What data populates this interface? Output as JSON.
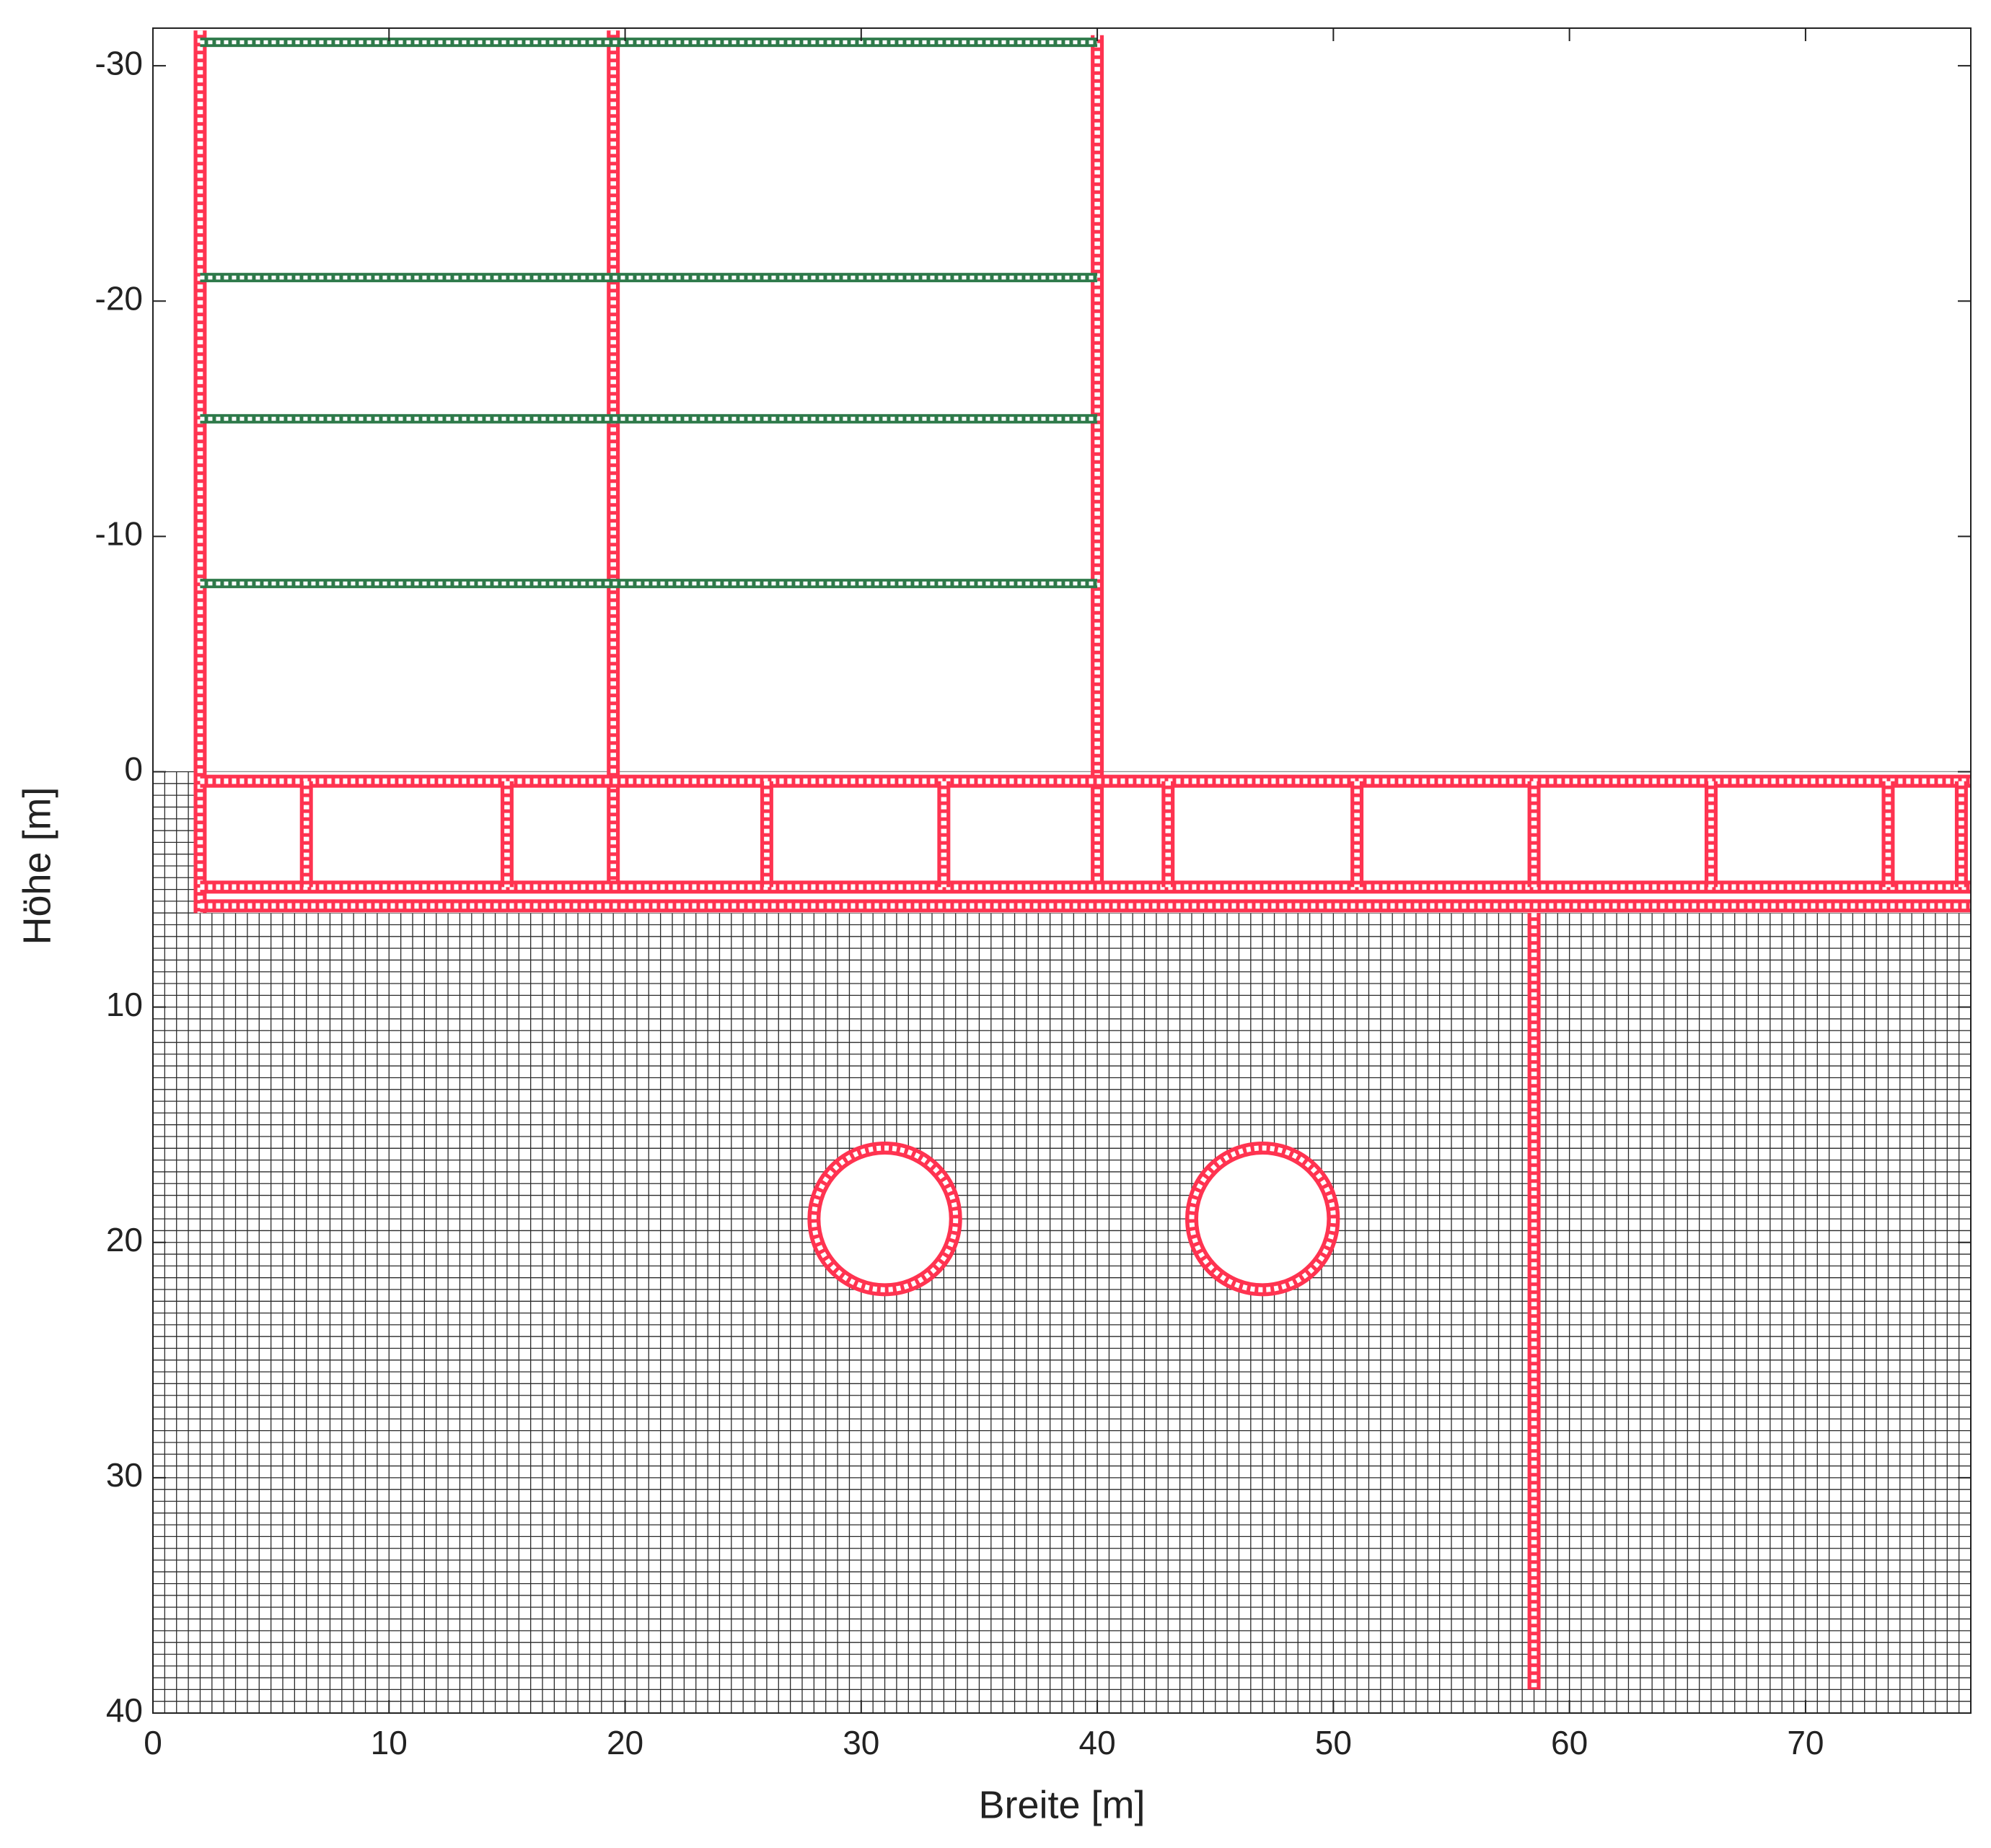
{
  "chart_data": {
    "type": "mesh",
    "xlabel": "Breite [m]",
    "ylabel": "Höhe [m]",
    "xlim": [
      0,
      77
    ],
    "ylim": [
      40,
      -31.6
    ],
    "xticks": [
      0,
      10,
      20,
      30,
      40,
      50,
      60,
      70
    ],
    "yticks": [
      -30,
      -20,
      -10,
      0,
      10,
      20,
      30,
      40
    ],
    "soil": {
      "x": [
        0,
        77
      ],
      "y": [
        0,
        40
      ],
      "spacing": 0.5,
      "color": "#2a2a2a"
    },
    "basement": {
      "x": [
        2,
        77
      ],
      "y": [
        0,
        6
      ]
    },
    "wall_color": "#ff3350",
    "walls": [
      {
        "x": [
          2,
          2
        ],
        "y": [
          -31.5,
          6
        ]
      },
      {
        "x": [
          19.5,
          19.5
        ],
        "y": [
          -31.5,
          5
        ]
      },
      {
        "x": [
          40,
          40
        ],
        "y": [
          -31.3,
          5
        ]
      },
      {
        "x": [
          2,
          77
        ],
        "y": [
          0.4,
          0.4
        ]
      },
      {
        "x": [
          2,
          77
        ],
        "y": [
          4.9,
          4.9
        ]
      },
      {
        "x": [
          2,
          77
        ],
        "y": [
          5.7,
          5.7
        ]
      },
      {
        "x": [
          6.5,
          6.5
        ],
        "y": [
          0.4,
          4.9
        ]
      },
      {
        "x": [
          15,
          15
        ],
        "y": [
          0.4,
          4.9
        ]
      },
      {
        "x": [
          26,
          26
        ],
        "y": [
          0.4,
          4.9
        ]
      },
      {
        "x": [
          33.5,
          33.5
        ],
        "y": [
          0.4,
          4.9
        ]
      },
      {
        "x": [
          43,
          43
        ],
        "y": [
          0.4,
          4.9
        ]
      },
      {
        "x": [
          51,
          51
        ],
        "y": [
          0.4,
          4.9
        ]
      },
      {
        "x": [
          58.5,
          58.5
        ],
        "y": [
          0.4,
          4.9
        ]
      },
      {
        "x": [
          66,
          66
        ],
        "y": [
          0.4,
          4.9
        ]
      },
      {
        "x": [
          73.5,
          73.5
        ],
        "y": [
          0.4,
          4.9
        ]
      },
      {
        "x": [
          76.6,
          76.6
        ],
        "y": [
          0.4,
          4.9
        ]
      },
      {
        "x": [
          58.5,
          58.5
        ],
        "y": [
          6,
          39
        ]
      }
    ],
    "floor_color": "#2e7a4a",
    "floors": [
      {
        "x": [
          2,
          40
        ],
        "y": [
          -31,
          -31
        ]
      },
      {
        "x": [
          2,
          40
        ],
        "y": [
          -21,
          -21
        ]
      },
      {
        "x": [
          2,
          40
        ],
        "y": [
          -15,
          -15
        ]
      },
      {
        "x": [
          2,
          40
        ],
        "y": [
          -8,
          -8
        ]
      }
    ],
    "tunnels": [
      {
        "x": 31,
        "y": 19,
        "r": 3
      },
      {
        "x": 47,
        "y": 19,
        "r": 3
      }
    ]
  }
}
